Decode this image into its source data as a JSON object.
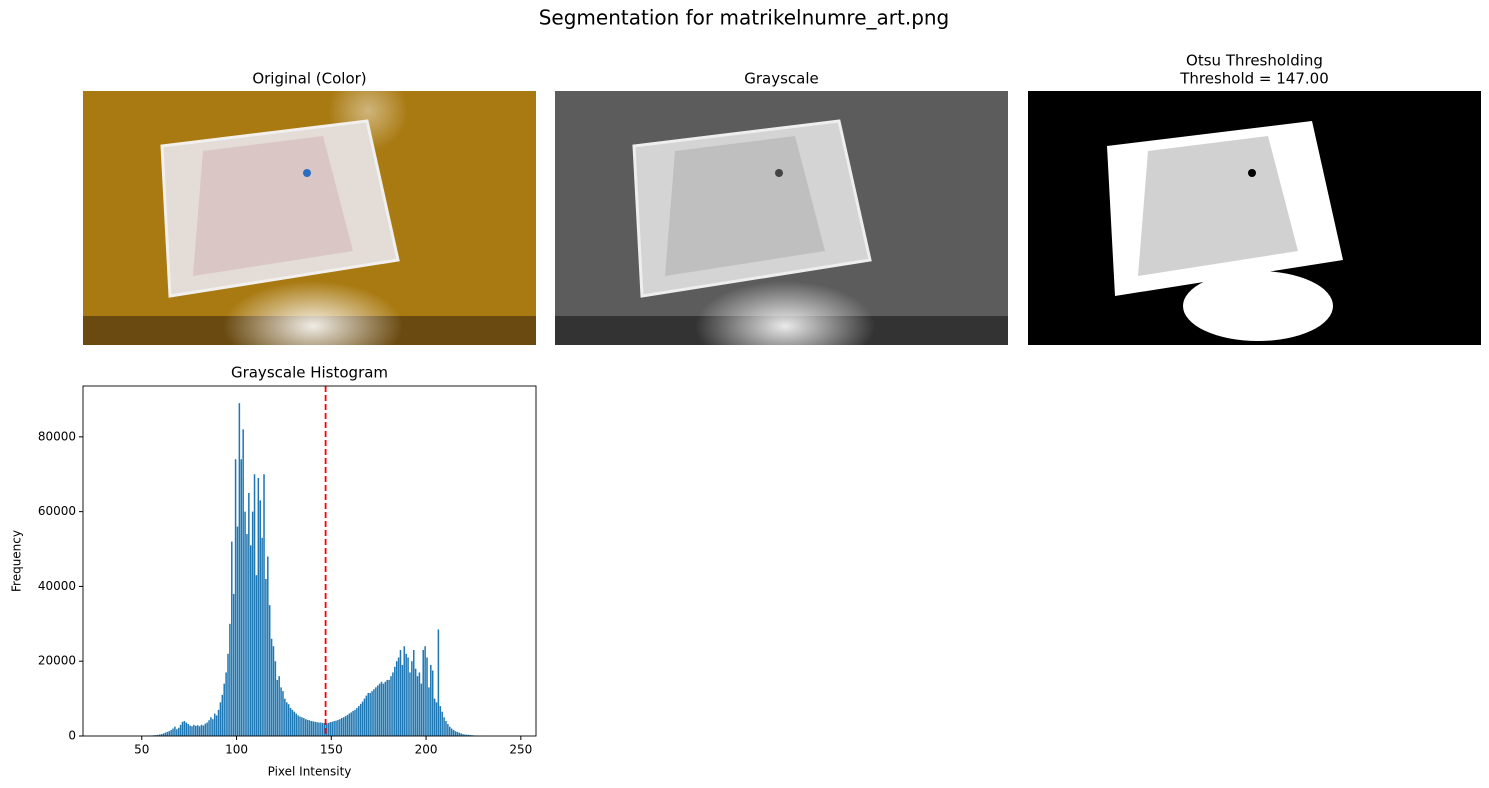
{
  "figure_title": "Segmentation for matrikelnumre_art.png",
  "image_titles": [
    [
      "Original (Color)"
    ],
    [
      "Grayscale"
    ],
    [
      "Otsu Thresholding",
      "Threshold = 147.00"
    ]
  ],
  "chart_data": {
    "type": "histogram",
    "title": "Grayscale Histogram",
    "xlabel": "Pixel Intensity",
    "ylabel": "Frequency",
    "color": "#1f77b4",
    "threshold": 147,
    "threshold_color": "#ff0000",
    "xlim": [
      19,
      258
    ],
    "ylim": [
      0,
      93600
    ],
    "xticks": [
      50,
      100,
      150,
      200,
      250
    ],
    "yticks": [
      0,
      20000,
      40000,
      60000,
      80000
    ],
    "bins": [
      30,
      31,
      32,
      33,
      34,
      35,
      36,
      37,
      38,
      39,
      40,
      41,
      42,
      43,
      44,
      45,
      46,
      47,
      48,
      49,
      50,
      51,
      52,
      53,
      54,
      55,
      56,
      57,
      58,
      59,
      60,
      61,
      62,
      63,
      64,
      65,
      66,
      67,
      68,
      69,
      70,
      71,
      72,
      73,
      74,
      75,
      76,
      77,
      78,
      79,
      80,
      81,
      82,
      83,
      84,
      85,
      86,
      87,
      88,
      89,
      90,
      91,
      92,
      93,
      94,
      95,
      96,
      97,
      98,
      99,
      100,
      101,
      102,
      103,
      104,
      105,
      106,
      107,
      108,
      109,
      110,
      111,
      112,
      113,
      114,
      115,
      116,
      117,
      118,
      119,
      120,
      121,
      122,
      123,
      124,
      125,
      126,
      127,
      128,
      129,
      130,
      131,
      132,
      133,
      134,
      135,
      136,
      137,
      138,
      139,
      140,
      141,
      142,
      143,
      144,
      145,
      146,
      147,
      148,
      149,
      150,
      151,
      152,
      153,
      154,
      155,
      156,
      157,
      158,
      159,
      160,
      161,
      162,
      163,
      164,
      165,
      166,
      167,
      168,
      169,
      170,
      171,
      172,
      173,
      174,
      175,
      176,
      177,
      178,
      179,
      180,
      181,
      182,
      183,
      184,
      185,
      186,
      187,
      188,
      189,
      190,
      191,
      192,
      193,
      194,
      195,
      196,
      197,
      198,
      199,
      200,
      201,
      202,
      203,
      204,
      205,
      206,
      207,
      208,
      209,
      210,
      211,
      212,
      213,
      214,
      215,
      216,
      217,
      218,
      219,
      220,
      221,
      222,
      223,
      224,
      225,
      226,
      227,
      228,
      229,
      230,
      231,
      232,
      233,
      234,
      235,
      236,
      237,
      238,
      239,
      240,
      241,
      242,
      243,
      244,
      245,
      246
    ],
    "values": [
      0,
      0,
      0,
      0,
      0,
      0,
      0,
      0,
      0,
      0,
      0,
      0,
      0,
      0,
      0,
      0,
      0,
      0,
      0,
      0,
      50,
      60,
      80,
      100,
      120,
      150,
      200,
      250,
      300,
      400,
      500,
      700,
      900,
      1100,
      1300,
      1600,
      2000,
      2500,
      1800,
      2200,
      3000,
      3800,
      4000,
      3600,
      3200,
      2800,
      2600,
      3000,
      2700,
      2900,
      2600,
      3000,
      2800,
      3300,
      3600,
      4200,
      5000,
      4500,
      6000,
      5500,
      7000,
      9000,
      11000,
      14000,
      17000,
      22000,
      30000,
      52000,
      38000,
      74000,
      56000,
      89000,
      74000,
      82000,
      60000,
      54000,
      65000,
      51000,
      60000,
      70000,
      43000,
      69000,
      63000,
      53000,
      70000,
      42000,
      48000,
      35000,
      26000,
      24000,
      20000,
      15000,
      16000,
      13000,
      12000,
      10000,
      9000,
      8500,
      7500,
      7000,
      6500,
      6000,
      5500,
      5200,
      5000,
      4800,
      4500,
      4300,
      4200,
      4000,
      3900,
      3800,
      3700,
      3600,
      3600,
      3500,
      3500,
      3400,
      3500,
      3700,
      3800,
      4000,
      4100,
      4300,
      4500,
      4800,
      5000,
      5300,
      5600,
      6000,
      6300,
      6700,
      7000,
      7500,
      8000,
      8600,
      9200,
      10000,
      10800,
      11500,
      11500,
      12000,
      12500,
      13000,
      13500,
      14000,
      14500,
      14000,
      14500,
      15000,
      15000,
      16000,
      17000,
      18500,
      20000,
      21000,
      23000,
      19000,
      24000,
      22000,
      21000,
      17000,
      20000,
      23000,
      18000,
      16000,
      17000,
      14000,
      23000,
      24000,
      21000,
      13000,
      19000,
      17500,
      10000,
      9000,
      28500,
      8000,
      6500,
      5000,
      4000,
      3200,
      2500,
      2000,
      1600,
      1300,
      1100,
      900,
      700,
      500,
      400,
      350,
      300,
      250,
      200,
      150,
      120,
      90,
      70,
      50,
      40,
      30,
      20,
      15,
      10,
      8,
      6,
      4,
      3,
      2,
      1,
      1,
      0,
      0,
      0,
      0
    ]
  }
}
